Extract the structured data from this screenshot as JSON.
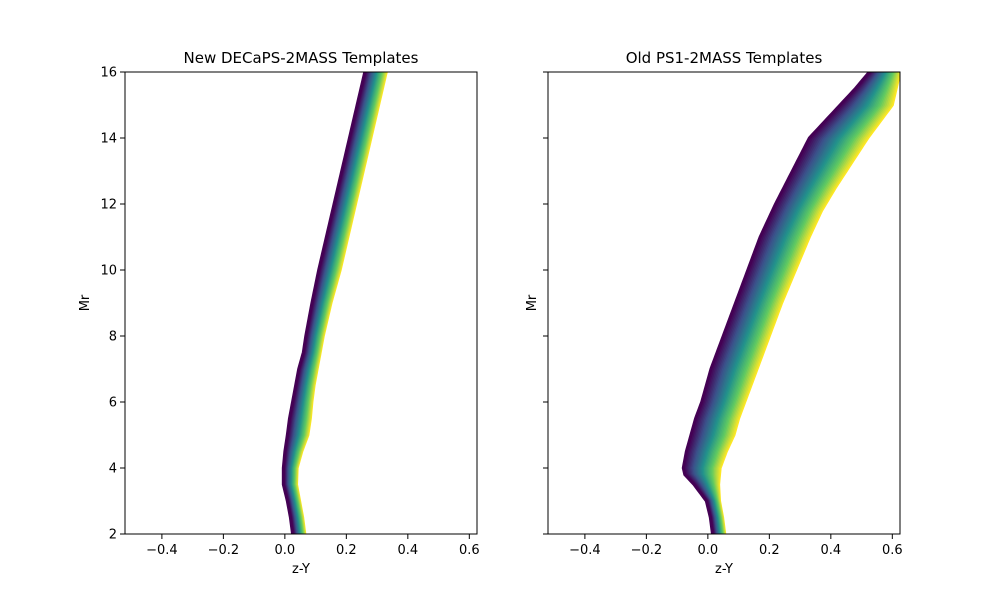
{
  "chart_data": [
    {
      "type": "line",
      "title": "New DECaPS-2MASS Templates",
      "xlabel": "z-Y",
      "ylabel": "Mr",
      "xlim": [
        -0.52,
        0.625
      ],
      "ylim": [
        2,
        16
      ],
      "xticks": [
        -0.4,
        -0.2,
        0.0,
        0.2,
        0.4,
        0.6
      ],
      "xtick_labels": [
        "−0.4",
        "−0.2",
        "0.0",
        "0.2",
        "0.4",
        "0.6"
      ],
      "yticks": [
        2,
        4,
        6,
        8,
        10,
        12,
        14,
        16
      ],
      "ytick_labels": [
        "2",
        "4",
        "6",
        "8",
        "10",
        "12",
        "14",
        "16"
      ],
      "show_ytick_labels": true,
      "colormap": "viridis",
      "colormap_stops": [
        "#440154",
        "#3b528b",
        "#21918c",
        "#5ec962",
        "#fde725"
      ],
      "n_curves": 30,
      "grid": false,
      "legend": "none",
      "edge_min": {
        "y": [
          2.0,
          2.5,
          3.0,
          3.5,
          4.0,
          4.5,
          5.0,
          5.5,
          6.0,
          6.5,
          7.0,
          7.5,
          8.0,
          9.0,
          10.0,
          11.0,
          12.0,
          13.0,
          14.0,
          15.0,
          16.0
        ],
        "x": [
          0.025,
          0.018,
          0.008,
          -0.005,
          -0.005,
          0.0,
          0.008,
          0.015,
          0.025,
          0.035,
          0.045,
          0.06,
          0.068,
          0.088,
          0.11,
          0.135,
          0.16,
          0.185,
          0.21,
          0.235,
          0.26
        ]
      },
      "edge_max": {
        "y": [
          2.0,
          2.5,
          3.0,
          3.5,
          4.0,
          4.5,
          5.0,
          5.5,
          6.0,
          6.5,
          7.0,
          7.5,
          8.0,
          9.0,
          10.0,
          11.0,
          12.0,
          13.0,
          14.0,
          15.0,
          16.0
        ],
        "x": [
          0.065,
          0.058,
          0.048,
          0.038,
          0.04,
          0.055,
          0.075,
          0.083,
          0.088,
          0.095,
          0.105,
          0.115,
          0.125,
          0.15,
          0.18,
          0.205,
          0.23,
          0.255,
          0.28,
          0.305,
          0.33
        ]
      }
    },
    {
      "type": "line",
      "title": "Old PS1-2MASS Templates",
      "xlabel": "z-Y",
      "ylabel": "Mr",
      "xlim": [
        -0.52,
        0.625
      ],
      "ylim": [
        2,
        16
      ],
      "xticks": [
        -0.4,
        -0.2,
        0.0,
        0.2,
        0.4,
        0.6
      ],
      "xtick_labels": [
        "−0.4",
        "−0.2",
        "0.0",
        "0.2",
        "0.4",
        "0.6"
      ],
      "yticks": [
        2,
        4,
        6,
        8,
        10,
        12,
        14,
        16
      ],
      "ytick_labels": [
        "2",
        "4",
        "6",
        "8",
        "10",
        "12",
        "14",
        "16"
      ],
      "show_ytick_labels": false,
      "colormap": "viridis",
      "colormap_stops": [
        "#440154",
        "#3b528b",
        "#21918c",
        "#5ec962",
        "#fde725"
      ],
      "n_curves": 30,
      "grid": false,
      "legend": "none",
      "edge_min": {
        "y": [
          2.0,
          2.5,
          3.0,
          3.5,
          3.8,
          4.0,
          4.5,
          5.0,
          5.5,
          6.0,
          7.0,
          8.0,
          9.0,
          10.0,
          11.0,
          12.0,
          13.0,
          14.0,
          14.5,
          15.0,
          15.5,
          16.0
        ],
        "x": [
          0.015,
          0.008,
          -0.005,
          -0.045,
          -0.075,
          -0.08,
          -0.07,
          -0.055,
          -0.04,
          -0.02,
          0.01,
          0.05,
          0.09,
          0.13,
          0.17,
          0.22,
          0.275,
          0.33,
          0.38,
          0.43,
          0.48,
          0.525
        ]
      },
      "edge_max": {
        "y": [
          2.0,
          2.5,
          3.0,
          3.5,
          4.0,
          4.5,
          5.0,
          5.5,
          6.0,
          7.0,
          8.0,
          9.0,
          10.0,
          11.0,
          11.8,
          12.5,
          13.0,
          14.0,
          14.5,
          15.0,
          16.0
        ],
        "x": [
          0.055,
          0.048,
          0.038,
          0.035,
          0.04,
          0.06,
          0.085,
          0.1,
          0.12,
          0.16,
          0.2,
          0.24,
          0.285,
          0.33,
          0.37,
          0.415,
          0.45,
          0.52,
          0.56,
          0.6,
          0.625
        ]
      }
    }
  ]
}
